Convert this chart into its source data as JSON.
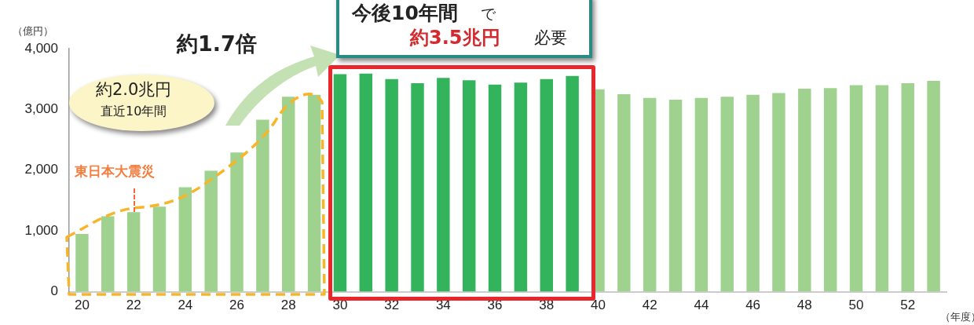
{
  "chart_data": {
    "type": "bar",
    "ylabel": "（億円）",
    "xlabel": "（年度）",
    "categories": [
      "20",
      null,
      "22",
      null,
      "24",
      null,
      "26",
      null,
      "28",
      null,
      "30",
      null,
      "32",
      null,
      "34",
      null,
      "36",
      null,
      "38",
      null,
      "40",
      null,
      "42",
      null,
      "44",
      null,
      "46",
      null,
      "48",
      null,
      "50",
      null,
      "52",
      null
    ],
    "values": [
      950,
      1240,
      1310,
      1400,
      1720,
      1990,
      2290,
      2830,
      3210,
      3240,
      3580,
      3590,
      3500,
      3430,
      3520,
      3480,
      3410,
      3440,
      3500,
      3550,
      3330,
      3250,
      3190,
      3160,
      3190,
      3210,
      3240,
      3270,
      3340,
      3350,
      3400,
      3400,
      3430,
      3470
    ],
    "colors": [
      "#9fd18f",
      "#9fd18f",
      "#9fd18f",
      "#9fd18f",
      "#9fd18f",
      "#9fd18f",
      "#9fd18f",
      "#9fd18f",
      "#9fd18f",
      "#9fd18f",
      "#33b45c",
      "#33b45c",
      "#33b45c",
      "#33b45c",
      "#33b45c",
      "#33b45c",
      "#33b45c",
      "#33b45c",
      "#33b45c",
      "#33b45c",
      "#9fd18f",
      "#9fd18f",
      "#9fd18f",
      "#9fd18f",
      "#9fd18f",
      "#9fd18f",
      "#9fd18f",
      "#9fd18f",
      "#9fd18f",
      "#9fd18f",
      "#9fd18f",
      "#9fd18f",
      "#9fd18f",
      "#9fd18f"
    ],
    "ylim": [
      0,
      4000
    ],
    "yticks": [
      0,
      {
        "value": 1000,
        "label": "1,000"
      },
      {
        "value": 2000,
        "label": "2,000"
      },
      {
        "value": 3000,
        "label": "3,000"
      },
      {
        "value": 4000,
        "label": "4,000"
      }
    ],
    "grid": false,
    "legend": false,
    "annotations": [
      "約1.7倍",
      "約2.0兆円",
      "直近10年間",
      "今後10年間",
      "で",
      "約3.5兆円",
      "必要",
      "東日本大震災"
    ]
  }
}
